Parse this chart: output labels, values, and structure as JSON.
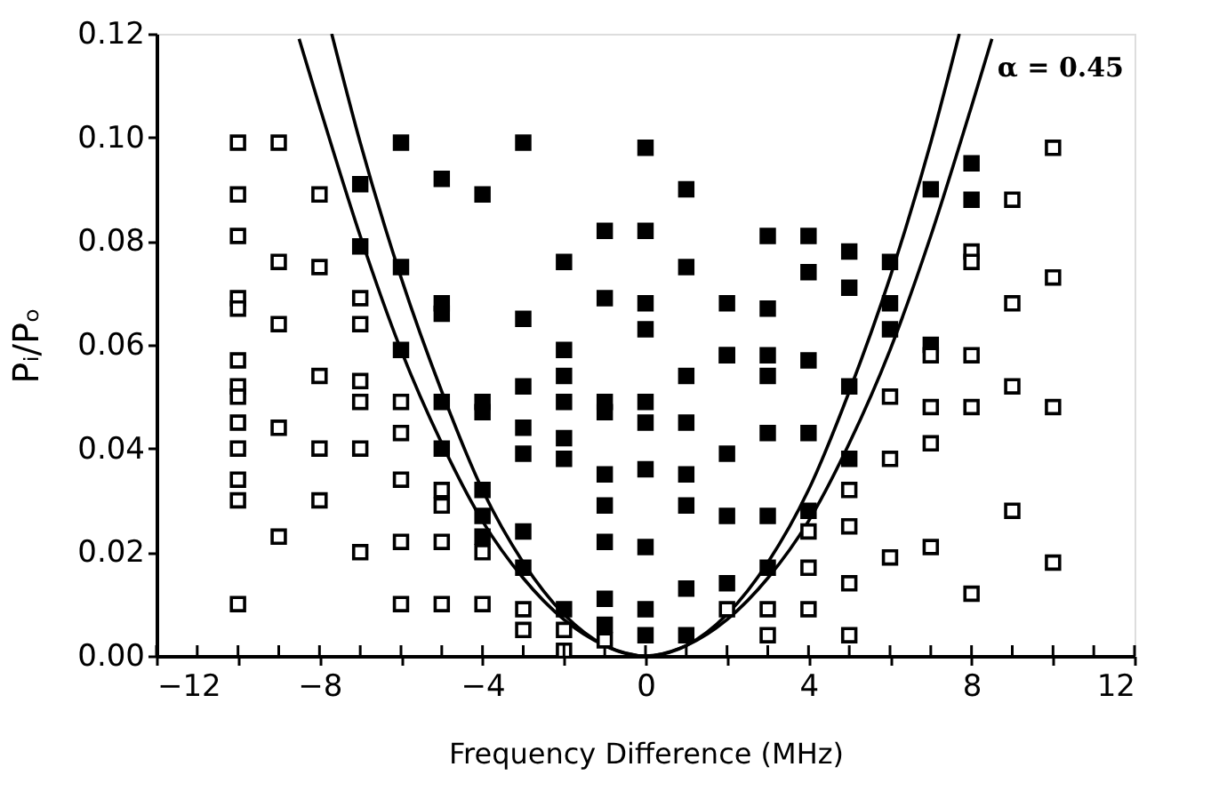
{
  "chart_data": {
    "type": "scatter",
    "xlabel": "Frequency Difference  (MHz)",
    "ylabel": "Pᵢ/Pₒ",
    "xlim": [
      -12,
      12
    ],
    "ylim": [
      0,
      0.12
    ],
    "xticks": [
      {
        "value": -12,
        "label": "−12"
      },
      {
        "value": -11,
        "label": null
      },
      {
        "value": -10,
        "label": null
      },
      {
        "value": -9,
        "label": null
      },
      {
        "value": -8,
        "label": "−8"
      },
      {
        "value": -7,
        "label": null
      },
      {
        "value": -6,
        "label": null
      },
      {
        "value": -5,
        "label": null
      },
      {
        "value": -4,
        "label": "−4"
      },
      {
        "value": -3,
        "label": null
      },
      {
        "value": -2,
        "label": null
      },
      {
        "value": -1,
        "label": null
      },
      0,
      {
        "value": 1,
        "label": null
      },
      {
        "value": 2,
        "label": null
      },
      {
        "value": 3,
        "label": null
      },
      4,
      {
        "value": 5,
        "label": null
      },
      {
        "value": 6,
        "label": null
      },
      {
        "value": 7,
        "label": null
      },
      8,
      {
        "value": 9,
        "label": null
      },
      {
        "value": 10,
        "label": null
      },
      {
        "value": 11,
        "label": null
      },
      12
    ],
    "yticks": [
      {
        "value": 0,
        "label": "0.00"
      },
      {
        "value": 0.02,
        "label": "0.02"
      },
      {
        "value": 0.04,
        "label": "0.04"
      },
      {
        "value": 0.06,
        "label": "0.06"
      },
      {
        "value": 0.08,
        "label": "0.08"
      },
      {
        "value": 0.1,
        "label": "0.10"
      },
      {
        "value": 0.12,
        "label": "0.12"
      }
    ],
    "grid": false,
    "marker": "square",
    "annotations": [
      "α = 0.45"
    ],
    "series": [
      {
        "type": "line",
        "marker": "none",
        "color": "#000000",
        "x": [
          -8.5,
          -8,
          -7,
          -6,
          -5,
          -4,
          -3,
          -2,
          -1,
          0,
          1,
          2,
          3,
          4,
          5,
          6,
          7,
          8,
          8.5
        ],
        "values": [
          0.119,
          0.106,
          0.081,
          0.059,
          0.041,
          0.026,
          0.015,
          0.007,
          0.002,
          0,
          0.002,
          0.007,
          0.015,
          0.026,
          0.041,
          0.059,
          0.081,
          0.106,
          0.119
        ]
      },
      {
        "type": "line",
        "marker": "none",
        "color": "#000000",
        "x": [
          -7.7,
          -7,
          -6,
          -5,
          -4,
          -3,
          -2,
          -1,
          0,
          1,
          2,
          3,
          4,
          5,
          6,
          7,
          7.7
        ],
        "values": [
          0.12,
          0.099,
          0.073,
          0.051,
          0.032,
          0.018,
          0.008,
          0.002,
          0,
          0.002,
          0.008,
          0.018,
          0.032,
          0.051,
          0.073,
          0.099,
          0.12
        ]
      },
      {
        "color": "#000000",
        "x": [
          -7,
          -7,
          -6,
          -6,
          -6,
          -5,
          -5,
          -5,
          -5,
          -5,
          -4,
          -4,
          -4,
          -4,
          -4,
          -4,
          -3,
          -3,
          -3,
          -3,
          -3,
          -3,
          -3,
          -2,
          -2,
          -2,
          -2,
          -2,
          -2,
          -2,
          -1,
          -1,
          -1,
          -1,
          -1,
          -1,
          -1,
          -1,
          -1,
          0,
          0,
          0,
          0,
          0,
          0,
          0,
          0,
          0,
          0,
          1,
          1,
          1,
          1,
          1,
          1,
          1,
          1,
          2,
          2,
          2,
          2,
          2,
          2,
          3,
          3,
          3,
          3,
          3,
          3,
          3,
          4,
          4,
          4,
          4,
          4,
          5,
          5,
          5,
          5,
          6,
          6,
          6,
          7,
          7,
          8,
          8
        ],
        "values": [
          0.091,
          0.079,
          0.099,
          0.075,
          0.059,
          0.092,
          0.068,
          0.066,
          0.049,
          0.04,
          0.089,
          0.049,
          0.047,
          0.032,
          0.027,
          0.023,
          0.099,
          0.065,
          0.052,
          0.044,
          0.039,
          0.024,
          0.017,
          0.076,
          0.059,
          0.054,
          0.049,
          0.042,
          0.038,
          0.009,
          0.082,
          0.069,
          0.049,
          0.047,
          0.035,
          0.029,
          0.022,
          0.011,
          0.006,
          0.098,
          0.082,
          0.068,
          0.063,
          0.049,
          0.045,
          0.036,
          0.021,
          0.009,
          0.004,
          0.09,
          0.075,
          0.054,
          0.045,
          0.035,
          0.029,
          0.013,
          0.004,
          0.068,
          0.058,
          0.039,
          0.027,
          0.014,
          0.058,
          0.081,
          0.067,
          0.058,
          0.054,
          0.043,
          0.027,
          0.017,
          0.081,
          0.074,
          0.057,
          0.043,
          0.028,
          0.078,
          0.071,
          0.052,
          0.038,
          0.076,
          0.068,
          0.063,
          0.09,
          0.06,
          0.095,
          0.088
        ]
      },
      {
        "color": "#ffffff",
        "x": [
          -10,
          -10,
          -10,
          -10,
          -10,
          -10,
          -10,
          -10,
          -10,
          -10,
          -10,
          -10,
          -10,
          -9,
          -9,
          -9,
          -9,
          -9,
          -8,
          -8,
          -8,
          -8,
          -8,
          -7,
          -7,
          -7,
          -7,
          -7,
          -7,
          -6,
          -6,
          -6,
          -6,
          -6,
          -5,
          -5,
          -5,
          -5,
          -4,
          -4,
          -3,
          -3,
          -2,
          -2,
          -1,
          2,
          3,
          3,
          4,
          4,
          4,
          5,
          5,
          5,
          5,
          6,
          6,
          6,
          7,
          7,
          7,
          7,
          8,
          8,
          8,
          8,
          8,
          9,
          9,
          9,
          9,
          10,
          10,
          10,
          10
        ],
        "values": [
          0.099,
          0.089,
          0.081,
          0.069,
          0.067,
          0.057,
          0.052,
          0.05,
          0.045,
          0.04,
          0.034,
          0.03,
          0.01,
          0.099,
          0.076,
          0.064,
          0.044,
          0.023,
          0.089,
          0.075,
          0.054,
          0.04,
          0.03,
          0.069,
          0.064,
          0.053,
          0.049,
          0.04,
          0.02,
          0.049,
          0.043,
          0.034,
          0.022,
          0.01,
          0.032,
          0.029,
          0.022,
          0.01,
          0.02,
          0.01,
          0.009,
          0.005,
          0.005,
          0.001,
          0.003,
          0.009,
          0.009,
          0.004,
          0.024,
          0.017,
          0.009,
          0.032,
          0.025,
          0.014,
          0.004,
          0.05,
          0.038,
          0.019,
          0.058,
          0.048,
          0.041,
          0.021,
          0.078,
          0.076,
          0.058,
          0.048,
          0.012,
          0.088,
          0.068,
          0.052,
          0.028,
          0.098,
          0.073,
          0.048,
          0.018
        ]
      }
    ]
  }
}
